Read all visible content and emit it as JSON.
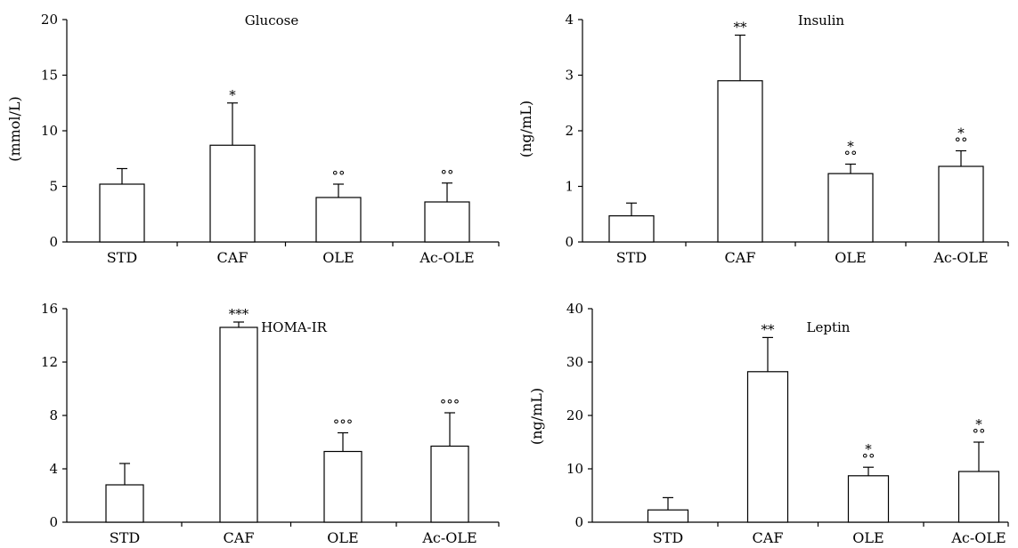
{
  "chart_data": [
    {
      "type": "bar",
      "title": "Glucose",
      "ylabel": "(mmol/L)",
      "xlabel": "",
      "categories": [
        "STD",
        "CAF",
        "OLE",
        "Ac-OLE"
      ],
      "values": [
        5.2,
        8.7,
        4.0,
        3.6
      ],
      "errors": [
        1.4,
        3.8,
        1.2,
        1.7
      ],
      "annotations": [
        "",
        "*",
        "°°",
        "°°"
      ],
      "ylim": [
        0,
        20
      ],
      "yticks": [
        0,
        5,
        10,
        15,
        20
      ],
      "grid": false,
      "colors": {
        "bar_fill": "#ffffff",
        "stroke": "#000000"
      }
    },
    {
      "type": "bar",
      "title": "Insulin",
      "ylabel": "(ng/mL)",
      "xlabel": "",
      "categories": [
        "STD",
        "CAF",
        "OLE",
        "Ac-OLE"
      ],
      "values": [
        0.47,
        2.9,
        1.23,
        1.36
      ],
      "errors": [
        0.23,
        0.82,
        0.17,
        0.28
      ],
      "annotations": [
        "",
        "**",
        "*\n°°",
        "*\n°°"
      ],
      "ylim": [
        0,
        4
      ],
      "yticks": [
        0,
        1,
        2,
        3,
        4
      ],
      "grid": false,
      "colors": {
        "bar_fill": "#ffffff",
        "stroke": "#000000"
      }
    },
    {
      "type": "bar",
      "title": "HOMA-IR",
      "ylabel": "",
      "xlabel": "",
      "categories": [
        "STD",
        "CAF",
        "OLE",
        "Ac-OLE"
      ],
      "values": [
        2.8,
        14.6,
        5.3,
        5.7
      ],
      "errors": [
        1.6,
        0.4,
        1.4,
        2.5
      ],
      "annotations": [
        "",
        "***",
        "°°°",
        "°°°"
      ],
      "ylim": [
        0,
        16
      ],
      "yticks": [
        0,
        4,
        8,
        12,
        16
      ],
      "grid": false,
      "colors": {
        "bar_fill": "#ffffff",
        "stroke": "#000000"
      }
    },
    {
      "type": "bar",
      "title": "Leptin",
      "ylabel": "(ng/mL)",
      "xlabel": "",
      "categories": [
        "STD",
        "CAF",
        "OLE",
        "Ac-OLE"
      ],
      "values": [
        2.3,
        28.2,
        8.7,
        9.5
      ],
      "errors": [
        2.3,
        6.4,
        1.6,
        5.5
      ],
      "annotations": [
        "",
        "**",
        "*\n°°",
        "*\n°°"
      ],
      "ylim": [
        0,
        40
      ],
      "yticks": [
        0,
        10,
        20,
        30,
        40
      ],
      "grid": false,
      "colors": {
        "bar_fill": "#ffffff",
        "stroke": "#000000"
      }
    }
  ]
}
